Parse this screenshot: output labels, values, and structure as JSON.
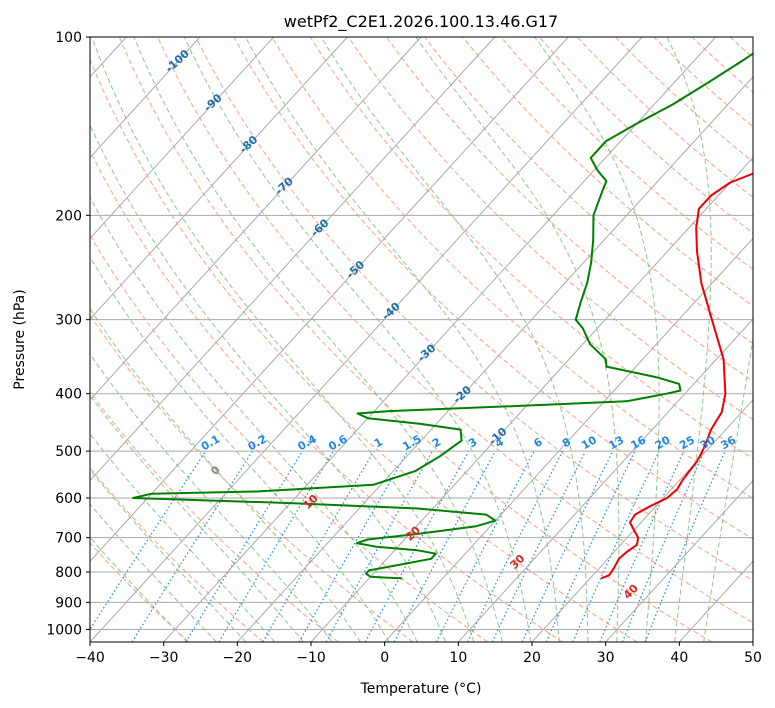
{
  "chart_data": {
    "type": "line",
    "subtype": "skew-T log-P",
    "title": "wetPf2_C2E1.2026.100.13.46.G17",
    "xlabel": "Temperature (°C)",
    "ylabel": "Pressure (hPa)",
    "xlim": [
      -40,
      50
    ],
    "ylim": [
      1050,
      100
    ],
    "y_scale": "log",
    "x_ticks": [
      "−40",
      "−30",
      "−20",
      "−10",
      "0",
      "10",
      "20",
      "30",
      "40",
      "50"
    ],
    "y_ticks": [
      "100",
      "200",
      "300",
      "400",
      "500",
      "600",
      "700",
      "800",
      "900",
      "1000"
    ],
    "y_tick_values": [
      100,
      200,
      300,
      400,
      500,
      600,
      700,
      800,
      900,
      1000
    ],
    "grid": true,
    "colors": {
      "temperature": "#ee0000",
      "dewpoint": "#008000",
      "isotherm": "#aaaaaa",
      "dry_adiabat": "#ffa083",
      "moist_adiabat": "#8cc88c",
      "mixing_ratio": "#1e88e5",
      "isotherm_label": "#1f6ea8",
      "dry_adiabat_label": "#d62728"
    },
    "series": [
      {
        "name": "",
        "color": "#ee0000",
        "points": [
          [
            820,
            21.5
          ],
          [
            810,
            22.2
          ],
          [
            790,
            22.0
          ],
          [
            760,
            21.5
          ],
          [
            740,
            21.7
          ],
          [
            720,
            22.2
          ],
          [
            700,
            21.5
          ],
          [
            680,
            20.0
          ],
          [
            660,
            18.5
          ],
          [
            640,
            18.2
          ],
          [
            620,
            19.2
          ],
          [
            600,
            20.5
          ],
          [
            580,
            20.8
          ],
          [
            560,
            20.4
          ],
          [
            540,
            20.2
          ],
          [
            520,
            20.0
          ],
          [
            500,
            19.5
          ],
          [
            480,
            18.8
          ],
          [
            460,
            18.0
          ],
          [
            430,
            17.3
          ],
          [
            400,
            15.5
          ],
          [
            350,
            11.0
          ],
          [
            300,
            4.5
          ],
          [
            260,
            -1.5
          ],
          [
            230,
            -6.0
          ],
          [
            210,
            -9.0
          ],
          [
            195,
            -11.0
          ],
          [
            185,
            -11.0
          ],
          [
            176,
            -10.0
          ],
          [
            170,
            -8.0
          ],
          [
            164,
            -4.5
          ],
          [
            158,
            -2.0
          ],
          [
            150,
            -1.0
          ],
          [
            140,
            -1.2
          ],
          [
            130,
            -2.5
          ],
          [
            120,
            -3.0
          ],
          [
            112,
            -3.8
          ],
          [
            105,
            -4.6
          ],
          [
            100,
            -5.0
          ]
        ]
      },
      {
        "name": "",
        "color": "#008000",
        "points": [
          [
            820,
            -5.5
          ],
          [
            815,
            -10.0
          ],
          [
            805,
            -11.0
          ],
          [
            795,
            -11.0
          ],
          [
            780,
            -8.0
          ],
          [
            760,
            -4.0
          ],
          [
            745,
            -4.0
          ],
          [
            735,
            -7.0
          ],
          [
            725,
            -13.0
          ],
          [
            715,
            -16.0
          ],
          [
            705,
            -15.0
          ],
          [
            690,
            -9.0
          ],
          [
            670,
            -2.0
          ],
          [
            655,
            0.0
          ],
          [
            640,
            -2.0
          ],
          [
            625,
            -12.0
          ],
          [
            612,
            -30.0
          ],
          [
            600,
            -52.0
          ],
          [
            590,
            -50.0
          ],
          [
            585,
            -36.0
          ],
          [
            570,
            -21.0
          ],
          [
            540,
            -17.0
          ],
          [
            510,
            -15.5
          ],
          [
            480,
            -14.5
          ],
          [
            460,
            -16.0
          ],
          [
            450,
            -22.0
          ],
          [
            440,
            -30.0
          ],
          [
            432,
            -32.0
          ],
          [
            428,
            -28.0
          ],
          [
            420,
            -12.0
          ],
          [
            412,
            3.0
          ],
          [
            400,
            7.5
          ],
          [
            395,
            9.0
          ],
          [
            385,
            8.0
          ],
          [
            375,
            4.0
          ],
          [
            360,
            -4.0
          ],
          [
            350,
            -5.0
          ],
          [
            330,
            -9.0
          ],
          [
            310,
            -12.0
          ],
          [
            300,
            -14.0
          ],
          [
            280,
            -15.5
          ],
          [
            260,
            -17.0
          ],
          [
            240,
            -19.0
          ],
          [
            220,
            -21.5
          ],
          [
            200,
            -24.5
          ],
          [
            185,
            -26.0
          ],
          [
            175,
            -27.0
          ],
          [
            168,
            -29.5
          ],
          [
            160,
            -32.0
          ],
          [
            150,
            -32.0
          ],
          [
            140,
            -30.0
          ],
          [
            130,
            -27.5
          ],
          [
            120,
            -25.5
          ],
          [
            110,
            -23.5
          ],
          [
            100,
            -21.5
          ]
        ]
      }
    ],
    "isotherm_labels": [
      "-100",
      "-90",
      "-80",
      "-70",
      "-60",
      "-50",
      "-40",
      "-30",
      "-20",
      "-10"
    ],
    "isotherm_label_values": [
      -100,
      -90,
      -80,
      -70,
      -60,
      -50,
      -40,
      -30,
      -20,
      -10
    ],
    "mixing_ratio_labels": [
      "0.1",
      "0.2",
      "0.4",
      "0.6",
      "1",
      "1.5",
      "2",
      "3",
      "4",
      "6",
      "8",
      "10",
      "13",
      "16",
      "20",
      "25",
      "30",
      "36"
    ],
    "mixing_ratio_label_values": [
      0.1,
      0.2,
      0.4,
      0.6,
      1,
      1.5,
      2,
      3,
      4,
      6,
      8,
      10,
      13,
      16,
      20,
      25,
      30,
      36
    ],
    "dry_adiabat_labels": [
      "0",
      "10",
      "20",
      "30",
      "40"
    ],
    "dry_adiabat_label_values": [
      0,
      10,
      20,
      30,
      40
    ]
  }
}
